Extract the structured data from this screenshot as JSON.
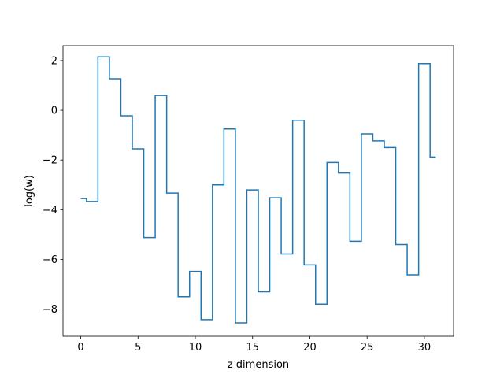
{
  "chart_data": {
    "type": "line",
    "drawstyle": "steps-mid",
    "title": "",
    "xlabel": "z dimension",
    "ylabel": "log(w)",
    "xlim": [
      -1.55,
      32.55
    ],
    "ylim": [
      -9.09,
      2.6
    ],
    "xticks": [
      0,
      5,
      10,
      15,
      20,
      25,
      30
    ],
    "yticks": [
      -8,
      -6,
      -4,
      -2,
      0,
      2
    ],
    "ytick_labels": [
      "−8",
      "−6",
      "−4",
      "−2",
      "0",
      "2"
    ],
    "grid": false,
    "legend": "none",
    "color": "#1f77b4",
    "x": [
      0,
      1,
      2,
      3,
      4,
      5,
      6,
      7,
      8,
      9,
      10,
      11,
      12,
      13,
      14,
      15,
      16,
      17,
      18,
      19,
      20,
      21,
      22,
      23,
      24,
      25,
      26,
      27,
      28,
      29,
      30,
      31
    ],
    "y": [
      -3.55,
      -3.67,
      2.15,
      1.27,
      -0.22,
      -1.55,
      -5.12,
      0.6,
      -3.33,
      -7.5,
      -6.48,
      -8.42,
      -3.0,
      -0.75,
      -8.55,
      -3.2,
      -7.3,
      -3.52,
      -5.78,
      -0.4,
      -6.22,
      -7.8,
      -2.1,
      -2.52,
      -5.27,
      -0.95,
      -1.23,
      -1.5,
      -5.4,
      -6.62,
      1.88,
      -1.88
    ]
  }
}
